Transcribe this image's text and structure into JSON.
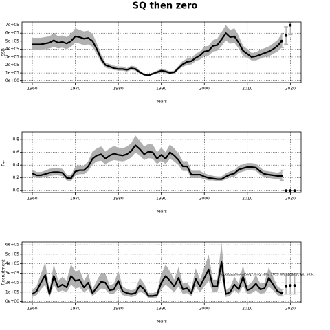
{
  "chart_data": [
    {
      "type": "line",
      "title": "SQ then zero",
      "ylabel": "SSB",
      "xlabel": "Years",
      "color": "#000000",
      "band_color": "#b0b0b0",
      "grid": true,
      "x": [
        1960,
        1961,
        1962,
        1963,
        1964,
        1965,
        1966,
        1967,
        1968,
        1969,
        1970,
        1971,
        1972,
        1973,
        1974,
        1975,
        1976,
        1977,
        1978,
        1979,
        1980,
        1981,
        1982,
        1983,
        1984,
        1985,
        1986,
        1987,
        1988,
        1989,
        1990,
        1991,
        1992,
        1993,
        1994,
        1995,
        1996,
        1997,
        1998,
        1999,
        2000,
        2001,
        2002,
        2003,
        2004,
        2005,
        2006,
        2007,
        2008,
        2009,
        2010,
        2011,
        2012,
        2013,
        2014,
        2015,
        2016,
        2017,
        2018
      ],
      "values": [
        460000.0,
        460000.0,
        460000.0,
        470000.0,
        480000.0,
        510000.0,
        480000.0,
        490000.0,
        470000.0,
        500000.0,
        560000.0,
        550000.0,
        530000.0,
        540000.0,
        500000.0,
        400000.0,
        280000.0,
        200000.0,
        180000.0,
        160000.0,
        150000.0,
        150000.0,
        140000.0,
        160000.0,
        150000.0,
        110000.0,
        80000.0,
        70000.0,
        90000.0,
        110000.0,
        130000.0,
        120000.0,
        100000.0,
        110000.0,
        160000.0,
        210000.0,
        240000.0,
        250000.0,
        290000.0,
        320000.0,
        370000.0,
        380000.0,
        440000.0,
        450000.0,
        520000.0,
        600000.0,
        550000.0,
        560000.0,
        480000.0,
        380000.0,
        340000.0,
        300000.0,
        310000.0,
        330000.0,
        350000.0,
        370000.0,
        400000.0,
        440000.0,
        500000.0
      ],
      "lower": [
        390000.0,
        390000.0,
        390000.0,
        400000.0,
        410000.0,
        430000.0,
        410000.0,
        420000.0,
        400000.0,
        430000.0,
        480000.0,
        470000.0,
        450000.0,
        460000.0,
        430000.0,
        340000.0,
        240000.0,
        170000.0,
        150000.0,
        140000.0,
        130000.0,
        130000.0,
        120000.0,
        140000.0,
        130000.0,
        90000.0,
        70000.0,
        60000.0,
        80000.0,
        90000.0,
        110000.0,
        100000.0,
        85000.0,
        90000.0,
        140000.0,
        180000.0,
        200000.0,
        210000.0,
        250000.0,
        270000.0,
        310000.0,
        320000.0,
        370000.0,
        380000.0,
        440000.0,
        510000.0,
        470000.0,
        480000.0,
        410000.0,
        320000.0,
        290000.0,
        260000.0,
        260000.0,
        280000.0,
        300000.0,
        310000.0,
        340000.0,
        370000.0,
        420000.0
      ],
      "upper": [
        540000.0,
        540000.0,
        540000.0,
        550000.0,
        560000.0,
        600000.0,
        560000.0,
        570000.0,
        550000.0,
        590000.0,
        660000.0,
        640000.0,
        620000.0,
        630000.0,
        590000.0,
        470000.0,
        330000.0,
        230000.0,
        210000.0,
        190000.0,
        180000.0,
        180000.0,
        160000.0,
        190000.0,
        180000.0,
        130000.0,
        90000.0,
        80000.0,
        105000.0,
        130000.0,
        150000.0,
        140000.0,
        120000.0,
        130000.0,
        190000.0,
        250000.0,
        280000.0,
        290000.0,
        340000.0,
        370000.0,
        430000.0,
        440000.0,
        510000.0,
        530000.0,
        610000.0,
        700000.0,
        640000.0,
        660000.0,
        560000.0,
        440000.0,
        400000.0,
        350000.0,
        360000.0,
        390000.0,
        410000.0,
        430000.0,
        470000.0,
        510000.0,
        590000.0
      ],
      "projection": {
        "x": [
          2018,
          2019,
          2020
        ],
        "values": [
          500000.0,
          570000.0,
          700000.0
        ],
        "lower": [
          420000.0,
          460000.0,
          580000.0
        ],
        "upper": [
          590000.0,
          680000.0,
          730000.0
        ]
      },
      "xlim": [
        1957.6,
        2022.5
      ],
      "xticks": [
        1960,
        1970,
        1980,
        1990,
        2000,
        2010,
        2020
      ],
      "ylim": [
        -20000.0,
        740000.0
      ],
      "yticks": [
        {
          "value": 0,
          "label": "0e+00"
        },
        {
          "value": 100000,
          "label": "1e+05"
        },
        {
          "value": 200000,
          "label": "2e+05"
        },
        {
          "value": 300000,
          "label": "3e+05"
        },
        {
          "value": 400000,
          "label": "4e+05"
        },
        {
          "value": 500000,
          "label": "5e+05"
        },
        {
          "value": 600000,
          "label": "6e+05"
        },
        {
          "value": 700000,
          "label": "7e+05"
        }
      ]
    },
    {
      "type": "line",
      "ylabel": "F₄₋₇",
      "xlabel": "Years",
      "color": "#000000",
      "band_color": "#b0b0b0",
      "grid": true,
      "x": [
        1960,
        1961,
        1962,
        1963,
        1964,
        1965,
        1966,
        1967,
        1968,
        1969,
        1970,
        1971,
        1972,
        1973,
        1974,
        1975,
        1976,
        1977,
        1978,
        1979,
        1980,
        1981,
        1982,
        1983,
        1984,
        1985,
        1986,
        1987,
        1988,
        1989,
        1990,
        1991,
        1992,
        1993,
        1994,
        1995,
        1996,
        1997,
        1998,
        1999,
        2000,
        2001,
        2002,
        2003,
        2004,
        2005,
        2006,
        2007,
        2008,
        2009,
        2010,
        2011,
        2012,
        2013,
        2014,
        2015,
        2016,
        2017,
        2018
      ],
      "values": [
        0.27,
        0.24,
        0.24,
        0.26,
        0.28,
        0.29,
        0.29,
        0.28,
        0.2,
        0.19,
        0.3,
        0.32,
        0.32,
        0.38,
        0.5,
        0.55,
        0.57,
        0.5,
        0.55,
        0.58,
        0.56,
        0.55,
        0.57,
        0.62,
        0.71,
        0.65,
        0.57,
        0.61,
        0.6,
        0.5,
        0.56,
        0.5,
        0.6,
        0.55,
        0.48,
        0.38,
        0.38,
        0.25,
        0.25,
        0.25,
        0.22,
        0.2,
        0.19,
        0.18,
        0.18,
        0.22,
        0.25,
        0.27,
        0.33,
        0.35,
        0.37,
        0.37,
        0.36,
        0.3,
        0.26,
        0.25,
        0.24,
        0.23,
        0.23
      ],
      "lower": [
        0.22,
        0.2,
        0.2,
        0.21,
        0.23,
        0.24,
        0.24,
        0.23,
        0.16,
        0.15,
        0.24,
        0.26,
        0.26,
        0.31,
        0.41,
        0.46,
        0.47,
        0.41,
        0.46,
        0.48,
        0.47,
        0.46,
        0.48,
        0.52,
        0.6,
        0.55,
        0.48,
        0.51,
        0.5,
        0.42,
        0.47,
        0.42,
        0.5,
        0.46,
        0.4,
        0.31,
        0.31,
        0.2,
        0.2,
        0.2,
        0.18,
        0.16,
        0.16,
        0.15,
        0.15,
        0.18,
        0.21,
        0.22,
        0.28,
        0.3,
        0.32,
        0.32,
        0.31,
        0.25,
        0.21,
        0.2,
        0.19,
        0.18,
        0.17
      ],
      "upper": [
        0.33,
        0.29,
        0.29,
        0.31,
        0.34,
        0.35,
        0.35,
        0.34,
        0.25,
        0.24,
        0.37,
        0.39,
        0.39,
        0.46,
        0.61,
        0.66,
        0.69,
        0.61,
        0.66,
        0.7,
        0.67,
        0.66,
        0.69,
        0.74,
        0.86,
        0.78,
        0.69,
        0.73,
        0.72,
        0.6,
        0.67,
        0.6,
        0.72,
        0.66,
        0.58,
        0.46,
        0.46,
        0.31,
        0.31,
        0.31,
        0.27,
        0.25,
        0.23,
        0.22,
        0.22,
        0.27,
        0.3,
        0.32,
        0.39,
        0.41,
        0.43,
        0.43,
        0.42,
        0.36,
        0.31,
        0.3,
        0.29,
        0.28,
        0.3
      ],
      "projection": {
        "x": [
          2018,
          2019,
          2020,
          2021
        ],
        "values": [
          0.23,
          0,
          0,
          0
        ],
        "lower": [
          0.16,
          0,
          0,
          0
        ],
        "upper": [
          0.32,
          0,
          0,
          0
        ]
      },
      "xlim": [
        1957.6,
        2022.5
      ],
      "xticks": [
        1960,
        1970,
        1980,
        1990,
        2000,
        2010,
        2020
      ],
      "ylim": [
        -0.03,
        0.92
      ],
      "yticks": [
        {
          "value": 0,
          "label": "0.0"
        },
        0.2,
        0.4,
        0.6,
        0.8
      ]
    },
    {
      "type": "line",
      "ylabel": "Recruitment",
      "xlabel": "Years",
      "color": "#000000",
      "band_color": "#b0b0b0",
      "grid": true,
      "annotation": "stockassessment.org, shng_sthis_2019_WI_FL0976 , git: 503c",
      "x": [
        1960,
        1961,
        1962,
        1963,
        1964,
        1965,
        1966,
        1967,
        1968,
        1969,
        1970,
        1971,
        1972,
        1973,
        1974,
        1975,
        1976,
        1977,
        1978,
        1979,
        1980,
        1981,
        1982,
        1983,
        1984,
        1985,
        1986,
        1987,
        1988,
        1989,
        1990,
        1991,
        1992,
        1993,
        1994,
        1995,
        1996,
        1997,
        1998,
        1999,
        2000,
        2001,
        2002,
        2003,
        2004,
        2005,
        2006,
        2007,
        2008,
        2009,
        2010,
        2011,
        2012,
        2013,
        2014,
        2015,
        2016,
        2017,
        2018
      ],
      "values": [
        80000.0,
        110000.0,
        200000.0,
        280000.0,
        80000.0,
        270000.0,
        150000.0,
        180000.0,
        150000.0,
        270000.0,
        220000.0,
        230000.0,
        150000.0,
        200000.0,
        90000.0,
        150000.0,
        210000.0,
        200000.0,
        120000.0,
        130000.0,
        220000.0,
        110000.0,
        90000.0,
        80000.0,
        90000.0,
        170000.0,
        130000.0,
        60000.0,
        60000.0,
        70000.0,
        200000.0,
        270000.0,
        220000.0,
        160000.0,
        250000.0,
        130000.0,
        140000.0,
        90000.0,
        240000.0,
        160000.0,
        250000.0,
        340000.0,
        160000.0,
        160000.0,
        420000.0,
        80000.0,
        100000.0,
        180000.0,
        130000.0,
        260000.0,
        120000.0,
        140000.0,
        190000.0,
        130000.0,
        140000.0,
        250000.0,
        180000.0,
        110000.0,
        90000.0
      ],
      "lower": [
        50000.0,
        70000.0,
        130000.0,
        180000.0,
        50000.0,
        180000.0,
        100000.0,
        120000.0,
        100000.0,
        180000.0,
        140000.0,
        150000.0,
        100000.0,
        130000.0,
        60000.0,
        100000.0,
        140000.0,
        130000.0,
        80000.0,
        85000.0,
        140000.0,
        70000.0,
        60000.0,
        50000.0,
        60000.0,
        110000.0,
        85000.0,
        40000.0,
        40000.0,
        45000.0,
        130000.0,
        180000.0,
        140000.0,
        100000.0,
        160000.0,
        85000.0,
        90000.0,
        60000.0,
        160000.0,
        100000.0,
        160000.0,
        220000.0,
        100000.0,
        100000.0,
        270000.0,
        50000.0,
        65000.0,
        120000.0,
        85000.0,
        170000.0,
        80000.0,
        90000.0,
        120000.0,
        85000.0,
        90000.0,
        160000.0,
        120000.0,
        70000.0,
        55000.0
      ],
      "upper": [
        120000.0,
        160000.0,
        290000.0,
        410000.0,
        120000.0,
        390000.0,
        220000.0,
        260000.0,
        220000.0,
        390000.0,
        320000.0,
        330000.0,
        220000.0,
        290000.0,
        130000.0,
        220000.0,
        300000.0,
        290000.0,
        170000.0,
        190000.0,
        320000.0,
        160000.0,
        130000.0,
        120000.0,
        130000.0,
        250000.0,
        190000.0,
        90000.0,
        90000.0,
        100000.0,
        290000.0,
        390000.0,
        320000.0,
        230000.0,
        360000.0,
        190000.0,
        200000.0,
        130000.0,
        350000.0,
        230000.0,
        360000.0,
        490000.0,
        230000.0,
        230000.0,
        610000.0,
        120000.0,
        150000.0,
        260000.0,
        190000.0,
        380000.0,
        170000.0,
        200000.0,
        280000.0,
        190000.0,
        200000.0,
        360000.0,
        260000.0,
        160000.0,
        130000.0
      ],
      "projection": {
        "x": [
          2018,
          2019,
          2020,
          2021
        ],
        "values": [
          90000.0,
          160000.0,
          170000.0,
          170000.0
        ],
        "lower": [
          60000.0,
          80000.0,
          80000.0,
          80000.0
        ],
        "upper": [
          130000.0,
          280000.0,
          280000.0,
          280000.0
        ]
      },
      "xlim": [
        1957.6,
        2022.5
      ],
      "xticks": [
        1960,
        1970,
        1980,
        1990,
        2000,
        2010,
        2020
      ],
      "ylim": [
        -10000.0,
        630000.0
      ],
      "yticks": [
        {
          "value": 0,
          "label": "0e+00"
        },
        {
          "value": 100000,
          "label": "1e+05"
        },
        {
          "value": 200000,
          "label": "2e+05"
        },
        {
          "value": 300000,
          "label": "3e+05"
        },
        {
          "value": 400000,
          "label": "4e+05"
        },
        {
          "value": 500000,
          "label": "5e+05"
        },
        {
          "value": 600000,
          "label": "6e+05"
        }
      ]
    }
  ]
}
